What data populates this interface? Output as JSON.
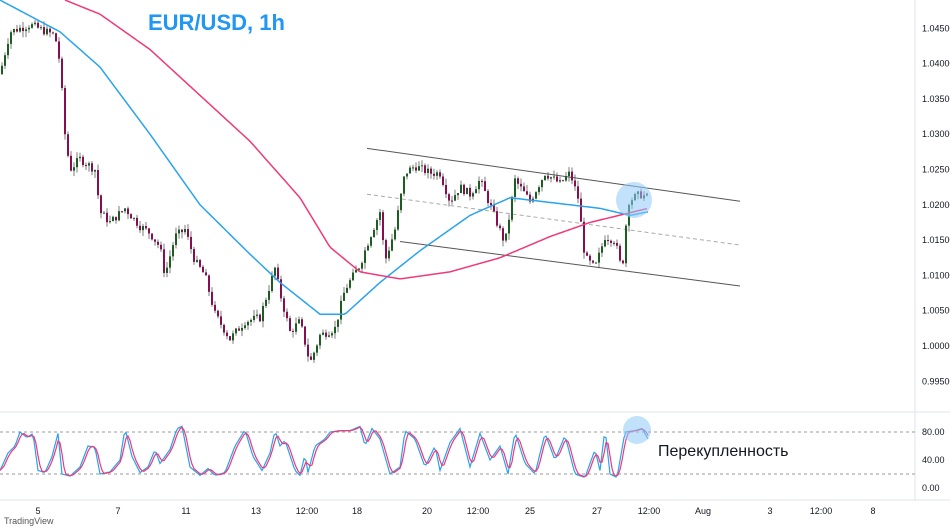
{
  "chart_data": {
    "type": "candlestick",
    "title": "EUR/USD, 1h",
    "annotation": "Перекупленность",
    "brand": "TradingView",
    "x_ticks": [
      "5",
      "7",
      "11",
      "13",
      "12:00",
      "18",
      "20",
      "12:00",
      "25",
      "27",
      "12:00",
      "Aug",
      "3",
      "12:00",
      "8"
    ],
    "y_ticks": [
      "1.04500",
      "1.04000",
      "1.03500",
      "1.03000",
      "1.02500",
      "1.02000",
      "1.01500",
      "1.01000",
      "1.00500",
      "1.00000",
      "0.99500"
    ],
    "ylim": [
      0.9935,
      1.0485
    ],
    "osc_ticks": [
      "80.00",
      "40.00",
      "0.00"
    ],
    "osc_levels": [
      80,
      20
    ],
    "colors": {
      "up": "#26a69a",
      "down": "#e91e63",
      "candle_body_up": "#1b5e20",
      "candle_body_down": "#880e4f",
      "ma_fast": "#29a3ef",
      "ma_slow": "#f0387a",
      "highlight": "#90caf9",
      "title": "#2196f3"
    },
    "price_close": [
      [
        0,
        1.0385
      ],
      [
        10,
        1.0445
      ],
      [
        30,
        1.0455
      ],
      [
        55,
        1.044
      ],
      [
        60,
        1.04
      ],
      [
        65,
        1.03
      ],
      [
        70,
        1.025
      ],
      [
        80,
        1.0265
      ],
      [
        95,
        1.025
      ],
      [
        100,
        1.019
      ],
      [
        110,
        1.0175
      ],
      [
        125,
        1.0195
      ],
      [
        140,
        1.017
      ],
      [
        150,
        1.016
      ],
      [
        160,
        1.014
      ],
      [
        165,
        1.01
      ],
      [
        175,
        1.0155
      ],
      [
        185,
        1.0165
      ],
      [
        195,
        1.012
      ],
      [
        205,
        1.01
      ],
      [
        215,
        1.0045
      ],
      [
        230,
        1.001
      ],
      [
        245,
        1.0035
      ],
      [
        260,
        1.004
      ],
      [
        275,
        1.011
      ],
      [
        280,
        1.0075
      ],
      [
        290,
        1.002
      ],
      [
        300,
        1.0035
      ],
      [
        310,
        0.9975
      ],
      [
        320,
        1.0015
      ],
      [
        335,
        1.0025
      ],
      [
        345,
        1.008
      ],
      [
        360,
        1.0115
      ],
      [
        370,
        1.0155
      ],
      [
        380,
        1.019
      ],
      [
        385,
        1.012
      ],
      [
        395,
        1.0165
      ],
      [
        405,
        1.0245
      ],
      [
        415,
        1.0255
      ],
      [
        430,
        1.0245
      ],
      [
        440,
        1.0245
      ],
      [
        450,
        1.0205
      ],
      [
        460,
        1.0225
      ],
      [
        470,
        1.0215
      ],
      [
        480,
        1.0235
      ],
      [
        490,
        1.02
      ],
      [
        505,
        1.0145
      ],
      [
        515,
        1.0235
      ],
      [
        530,
        1.0205
      ],
      [
        545,
        1.0245
      ],
      [
        560,
        1.023
      ],
      [
        570,
        1.0245
      ],
      [
        578,
        1.021
      ],
      [
        585,
        1.0125
      ],
      [
        595,
        1.011
      ],
      [
        605,
        1.0155
      ],
      [
        615,
        1.015
      ],
      [
        622,
        1.0105
      ],
      [
        628,
        1.0205
      ],
      [
        640,
        1.0215
      ],
      [
        648,
        1.021
      ]
    ],
    "ma_fast": [
      [
        0,
        1.049
      ],
      [
        60,
        1.0445
      ],
      [
        100,
        1.0395
      ],
      [
        150,
        1.03
      ],
      [
        200,
        1.02
      ],
      [
        250,
        1.013
      ],
      [
        280,
        1.009
      ],
      [
        320,
        1.0045
      ],
      [
        345,
        1.0045
      ],
      [
        380,
        1.009
      ],
      [
        420,
        1.0135
      ],
      [
        470,
        1.0185
      ],
      [
        510,
        1.021
      ],
      [
        570,
        1.02
      ],
      [
        600,
        1.0195
      ],
      [
        630,
        1.0185
      ],
      [
        648,
        1.019
      ]
    ],
    "ma_slow": [
      [
        65,
        1.049
      ],
      [
        100,
        1.047
      ],
      [
        150,
        1.042
      ],
      [
        200,
        1.0355
      ],
      [
        250,
        1.029
      ],
      [
        300,
        1.021
      ],
      [
        330,
        1.014
      ],
      [
        360,
        1.0105
      ],
      [
        400,
        1.0095
      ],
      [
        450,
        1.0105
      ],
      [
        500,
        1.0125
      ],
      [
        550,
        1.0155
      ],
      [
        590,
        1.0175
      ],
      [
        648,
        1.0195
      ]
    ],
    "channel": {
      "upper": [
        [
          367,
          1.028
        ],
        [
          740,
          1.0205
        ]
      ],
      "middle": [
        [
          367,
          1.0215
        ],
        [
          740,
          1.0143
        ]
      ],
      "lower": [
        [
          400,
          1.0148
        ],
        [
          740,
          1.0085
        ]
      ]
    },
    "stoch_k": [
      [
        0,
        25
      ],
      [
        8,
        50
      ],
      [
        15,
        60
      ],
      [
        20,
        80
      ],
      [
        27,
        72
      ],
      [
        33,
        78
      ],
      [
        38,
        25
      ],
      [
        45,
        22
      ],
      [
        52,
        45
      ],
      [
        58,
        78
      ],
      [
        62,
        20
      ],
      [
        70,
        17
      ],
      [
        80,
        30
      ],
      [
        88,
        60
      ],
      [
        95,
        58
      ],
      [
        100,
        20
      ],
      [
        110,
        23
      ],
      [
        120,
        40
      ],
      [
        125,
        85
      ],
      [
        132,
        45
      ],
      [
        140,
        22
      ],
      [
        148,
        30
      ],
      [
        155,
        55
      ],
      [
        160,
        35
      ],
      [
        170,
        55
      ],
      [
        177,
        85
      ],
      [
        182,
        88
      ],
      [
        190,
        30
      ],
      [
        200,
        18
      ],
      [
        208,
        28
      ],
      [
        215,
        18
      ],
      [
        225,
        22
      ],
      [
        235,
        60
      ],
      [
        245,
        83
      ],
      [
        253,
        45
      ],
      [
        262,
        25
      ],
      [
        270,
        50
      ],
      [
        275,
        82
      ],
      [
        280,
        60
      ],
      [
        285,
        68
      ],
      [
        295,
        25
      ],
      [
        300,
        18
      ],
      [
        305,
        48
      ],
      [
        308,
        22
      ],
      [
        315,
        60
      ],
      [
        325,
        70
      ],
      [
        330,
        80
      ],
      [
        340,
        82
      ],
      [
        350,
        82
      ],
      [
        360,
        88
      ],
      [
        365,
        60
      ],
      [
        372,
        85
      ],
      [
        380,
        70
      ],
      [
        390,
        20
      ],
      [
        400,
        30
      ],
      [
        405,
        82
      ],
      [
        415,
        70
      ],
      [
        425,
        30
      ],
      [
        435,
        60
      ],
      [
        440,
        25
      ],
      [
        450,
        65
      ],
      [
        460,
        85
      ],
      [
        470,
        30
      ],
      [
        480,
        78
      ],
      [
        490,
        40
      ],
      [
        500,
        60
      ],
      [
        508,
        20
      ],
      [
        515,
        80
      ],
      [
        525,
        35
      ],
      [
        535,
        20
      ],
      [
        545,
        78
      ],
      [
        555,
        40
      ],
      [
        565,
        75
      ],
      [
        575,
        20
      ],
      [
        585,
        15
      ],
      [
        595,
        55
      ],
      [
        600,
        25
      ],
      [
        605,
        85
      ],
      [
        610,
        20
      ],
      [
        617,
        15
      ],
      [
        625,
        80
      ],
      [
        635,
        82
      ],
      [
        642,
        85
      ],
      [
        648,
        70
      ]
    ]
  }
}
